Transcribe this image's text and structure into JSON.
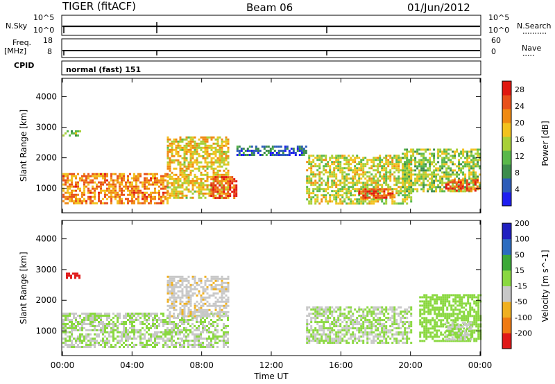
{
  "header": {
    "station": "TIGER (fitACF)",
    "beam": "Beam 06",
    "date": "01/Jun/2012"
  },
  "panel_labels": {
    "nsky": "N.Sky",
    "nsearch": "N.Search",
    "freq": "Freq.",
    "mhz": "[MHz]",
    "nave": "Nave",
    "cpid": "CPID",
    "cpid_value": "normal (fast) 151"
  },
  "noise_ticks": {
    "left": [
      "10^5",
      "10^0"
    ],
    "right": [
      "10^5",
      "10^0"
    ]
  },
  "freq_ticks": {
    "left": [
      "18",
      "8"
    ],
    "right": [
      "60",
      "0"
    ]
  },
  "colors": {
    "power": [
      "#1e1ef0",
      "#2c5cb8",
      "#3c8c4c",
      "#59b84a",
      "#a8d038",
      "#f2c21e",
      "#f08a12",
      "#e8501a",
      "#e01810"
    ],
    "velocity": [
      "#e01818",
      "#f07a12",
      "#f0b020",
      "#c8c8c8",
      "#8ad840",
      "#3ca838",
      "#2c6cc0",
      "#2020c0"
    ]
  },
  "chart_data": [
    {
      "type": "heatmap",
      "title": "Power",
      "ylabel": "Slant Range [km]",
      "xlabel": "Time UT",
      "x_ticks": [
        "00:00",
        "04:00",
        "08:00",
        "12:00",
        "16:00",
        "20:00",
        "00:00"
      ],
      "y_ticks": [
        "1000",
        "2000",
        "3000",
        "4000"
      ],
      "ylim": [
        200,
        4600
      ],
      "xlim_hours": [
        0,
        24
      ],
      "colorbar": {
        "label": "Power [dB]",
        "ticks": [
          "4",
          "8",
          "12",
          "16",
          "20",
          "24",
          "28"
        ],
        "range": [
          0,
          30
        ]
      },
      "regions": [
        {
          "t": [
            0,
            6
          ],
          "r": [
            500,
            1500
          ],
          "value": 22
        },
        {
          "t": [
            6,
            9.5
          ],
          "r": [
            700,
            2700
          ],
          "value": 18
        },
        {
          "t": [
            8.5,
            10
          ],
          "r": [
            700,
            1400
          ],
          "value": 26
        },
        {
          "t": [
            10,
            14
          ],
          "r": [
            2100,
            2400
          ],
          "value": 6
        },
        {
          "t": [
            14,
            20
          ],
          "r": [
            500,
            2100
          ],
          "value": 16
        },
        {
          "t": [
            17,
            19
          ],
          "r": [
            700,
            1000
          ],
          "value": 25
        },
        {
          "t": [
            19.5,
            24
          ],
          "r": [
            900,
            2300
          ],
          "value": 14
        },
        {
          "t": [
            22,
            24
          ],
          "r": [
            900,
            1300
          ],
          "value": 25
        },
        {
          "t": [
            0,
            1
          ],
          "r": [
            2700,
            2900
          ],
          "value": 14
        }
      ]
    },
    {
      "type": "heatmap",
      "title": "Velocity",
      "ylabel": "Slant Range [km]",
      "xlabel": "Time UT",
      "x_ticks": [
        "00:00",
        "04:00",
        "08:00",
        "12:00",
        "16:00",
        "20:00",
        "00:00"
      ],
      "y_ticks": [
        "1000",
        "2000",
        "3000",
        "4000"
      ],
      "ylim": [
        200,
        4600
      ],
      "xlim_hours": [
        0,
        24
      ],
      "colorbar": {
        "label": "Velocity [m s^-1]",
        "ticks": [
          "200",
          "100",
          "50",
          "15",
          "-15",
          "-50",
          "-100",
          "-200"
        ],
        "range": [
          -250,
          250
        ]
      },
      "regions": [
        {
          "t": [
            0,
            9.5
          ],
          "r": [
            500,
            1600
          ],
          "value": 0
        },
        {
          "t": [
            6,
            9.5
          ],
          "r": [
            1500,
            2800
          ],
          "value": -40
        },
        {
          "t": [
            0.2,
            1
          ],
          "r": [
            2700,
            2900
          ],
          "value": -220
        },
        {
          "t": [
            14,
            20
          ],
          "r": [
            600,
            1800
          ],
          "value": 0
        },
        {
          "t": [
            20.5,
            24
          ],
          "r": [
            700,
            2200
          ],
          "value": 30
        },
        {
          "t": [
            22,
            23.5
          ],
          "r": [
            700,
            1300
          ],
          "value": 0
        }
      ]
    }
  ]
}
